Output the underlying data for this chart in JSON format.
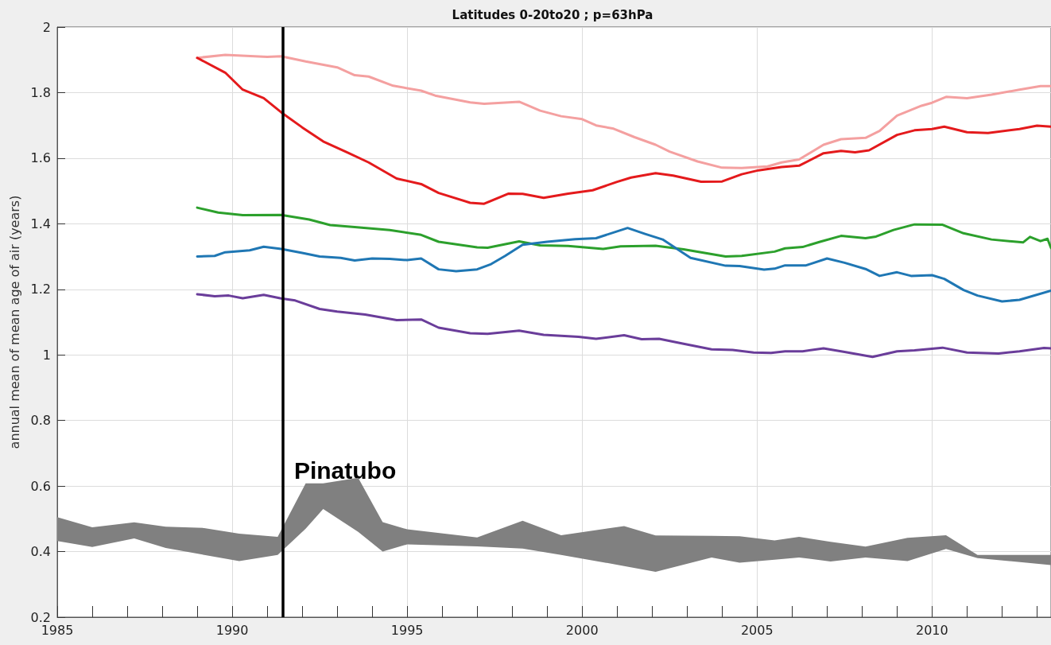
{
  "chart_data": {
    "type": "line",
    "title": "Latitudes 0-20to20 ; p=63hPa",
    "ylabel": "annual mean of mean age of air (years)",
    "xlim": [
      1985,
      2013.4
    ],
    "xticks": [
      1985,
      1990,
      1995,
      2000,
      2005,
      2010
    ],
    "ylim": [
      0.2,
      2
    ],
    "yticks": [
      0.2,
      0.4,
      0.6,
      0.8,
      1,
      1.2,
      1.4,
      1.6,
      1.8,
      2
    ],
    "grid": true,
    "marker": "none",
    "line_style": "solid",
    "ref_lines": [
      {
        "axis": "x",
        "value": 1991.45,
        "label": "Pinatubo",
        "color": "#000000"
      }
    ],
    "series": [
      {
        "type": "area",
        "color": "#808080",
        "values": [
          null,
          null,
          null,
          null,
          null,
          null,
          null,
          null,
          null,
          null,
          null,
          null,
          null,
          null,
          null,
          null,
          null,
          null,
          null,
          null,
          null,
          null,
          null,
          null,
          null,
          null,
          null
        ],
        "x": [
          1985,
          1986,
          1987.2,
          1988.1,
          1989.2,
          1990.2,
          1991.3,
          1992.1,
          1992.6,
          1993.6,
          1994.3,
          1995,
          1997,
          1998.3,
          1999.4,
          2001.2,
          2002.1,
          2003.7,
          2004.5,
          2005.5,
          2006.2,
          2007.1,
          2008.1,
          2009.3,
          2010.4,
          2011.3,
          2013.4
        ],
        "upper": [
          0.505,
          0.474,
          0.489,
          0.476,
          0.472,
          0.455,
          0.445,
          0.608,
          0.608,
          0.625,
          0.49,
          0.468,
          0.443,
          0.494,
          0.45,
          0.478,
          0.449,
          0.448,
          0.447,
          0.434,
          0.445,
          0.43,
          0.415,
          0.442,
          0.45,
          0.39,
          0.39
        ],
        "lower": [
          0.432,
          0.414,
          0.44,
          0.411,
          0.39,
          0.371,
          0.39,
          0.47,
          0.53,
          0.46,
          0.4,
          0.422,
          0.416,
          0.409,
          0.39,
          0.356,
          0.338,
          0.382,
          0.366,
          0.375,
          0.382,
          0.37,
          0.382,
          0.371,
          0.408,
          0.38,
          0.359
        ]
      },
      {
        "color": "#f4a0a0",
        "x": [
          1989,
          1989.8,
          1991,
          1991.4,
          1992.1,
          1993,
          1993.5,
          1993.9,
          1994.6,
          1995.4,
          1995.8,
          1996.8,
          1997.2,
          1998.2,
          1998.8,
          1999.4,
          2000,
          2000.4,
          2000.9,
          2001.5,
          2002.1,
          2002.5,
          2003.3,
          2004,
          2004.56,
          2005.3,
          2005.7,
          2006.2,
          2006.9,
          2007.4,
          2008.1,
          2008.5,
          2009,
          2009.7,
          2010,
          2010.4,
          2011,
          2011.7,
          2012.5,
          2013.1,
          2013.4
        ],
        "values": [
          1.906,
          1.915,
          1.909,
          1.911,
          1.895,
          1.877,
          1.853,
          1.849,
          1.821,
          1.806,
          1.791,
          1.77,
          1.766,
          1.772,
          1.745,
          1.728,
          1.719,
          1.7,
          1.69,
          1.664,
          1.641,
          1.62,
          1.59,
          1.571,
          1.57,
          1.575,
          1.587,
          1.596,
          1.641,
          1.658,
          1.662,
          1.683,
          1.73,
          1.76,
          1.769,
          1.787,
          1.783,
          1.794,
          1.809,
          1.82,
          1.82
        ]
      },
      {
        "color": "#e41a1c",
        "x": [
          1989,
          1989.8,
          1990.3,
          1990.9,
          1991.4,
          1992,
          1992.6,
          1993.3,
          1993.9,
          1994.7,
          1995.4,
          1995.9,
          1996.8,
          1997.2,
          1997.9,
          1998.3,
          1998.9,
          1999.6,
          2000.3,
          2001,
          2001.4,
          2002.1,
          2002.6,
          2003.4,
          2004,
          2004.56,
          2005.04,
          2005.7,
          2006.2,
          2006.9,
          2007.4,
          2007.8,
          2008.2,
          2009,
          2009.5,
          2010,
          2010.35,
          2011,
          2011.6,
          2012.5,
          2013,
          2013.4
        ],
        "values": [
          1.906,
          1.861,
          1.809,
          1.783,
          1.74,
          1.694,
          1.651,
          1.617,
          1.587,
          1.538,
          1.521,
          1.494,
          1.464,
          1.461,
          1.492,
          1.491,
          1.479,
          1.492,
          1.502,
          1.528,
          1.541,
          1.554,
          1.547,
          1.528,
          1.529,
          1.551,
          1.563,
          1.573,
          1.577,
          1.615,
          1.622,
          1.618,
          1.624,
          1.671,
          1.685,
          1.689,
          1.696,
          1.679,
          1.677,
          1.689,
          1.699,
          1.696
        ]
      },
      {
        "color": "#2ca02c",
        "x": [
          1989,
          1989.6,
          1990.3,
          1991.4,
          1992.2,
          1992.8,
          1993.5,
          1994.5,
          1995.4,
          1995.9,
          1997,
          1997.3,
          1998.2,
          1998.8,
          1999.6,
          2000.6,
          2001.1,
          2002.1,
          2002.9,
          2004.1,
          2004.56,
          2005.5,
          2005.8,
          2006.3,
          2006.8,
          2007.4,
          2008.1,
          2008.4,
          2008.9,
          2009.5,
          2010.3,
          2010.9,
          2011.7,
          2012.6,
          2012.8,
          2013.1,
          2013.3,
          2013.4
        ],
        "values": [
          1.449,
          1.434,
          1.426,
          1.427,
          1.413,
          1.396,
          1.39,
          1.381,
          1.366,
          1.345,
          1.328,
          1.327,
          1.346,
          1.334,
          1.332,
          1.323,
          1.331,
          1.333,
          1.322,
          1.3,
          1.302,
          1.315,
          1.325,
          1.329,
          1.345,
          1.363,
          1.356,
          1.361,
          1.381,
          1.398,
          1.397,
          1.371,
          1.352,
          1.343,
          1.36,
          1.347,
          1.354,
          1.326
        ]
      },
      {
        "color": "#1f77b4",
        "x": [
          1989,
          1989.5,
          1989.8,
          1990.5,
          1990.9,
          1991.4,
          1992,
          1992.5,
          1993.1,
          1993.5,
          1994,
          1994.5,
          1995,
          1995.4,
          1995.9,
          1996.4,
          1997,
          1997.4,
          1997.8,
          1998.3,
          1999,
          1999.8,
          2000.4,
          2001.3,
          2001.8,
          2002.3,
          2003.1,
          2004.1,
          2004.5,
          2005.2,
          2005.5,
          2005.8,
          2006.4,
          2007,
          2007.5,
          2008.1,
          2008.5,
          2009,
          2009.4,
          2010,
          2010.35,
          2010.9,
          2011.3,
          2012,
          2012.5,
          2013.4
        ],
        "values": [
          1.3,
          1.302,
          1.313,
          1.319,
          1.33,
          1.323,
          1.311,
          1.3,
          1.296,
          1.288,
          1.294,
          1.293,
          1.289,
          1.294,
          1.261,
          1.255,
          1.261,
          1.277,
          1.302,
          1.336,
          1.345,
          1.353,
          1.356,
          1.387,
          1.369,
          1.352,
          1.296,
          1.272,
          1.271,
          1.26,
          1.263,
          1.273,
          1.273,
          1.294,
          1.281,
          1.262,
          1.241,
          1.252,
          1.241,
          1.243,
          1.232,
          1.198,
          1.181,
          1.163,
          1.168,
          1.196
        ]
      },
      {
        "color": "#6a3d9a",
        "x": [
          1989,
          1989.5,
          1989.9,
          1990.3,
          1990.9,
          1991.4,
          1991.8,
          1992.5,
          1993,
          1993.8,
          1994.7,
          1995.4,
          1995.9,
          1996.8,
          1997.3,
          1998.2,
          1998.9,
          1999.9,
          2000.4,
          2001.2,
          2001.7,
          2002.2,
          2002.9,
          2003.7,
          2004.3,
          2004.9,
          2005.4,
          2005.8,
          2006.3,
          2006.9,
          2007.5,
          2008.3,
          2009,
          2009.5,
          2010.3,
          2011,
          2011.9,
          2012.5,
          2013.2,
          2013.4
        ],
        "values": [
          1.185,
          1.179,
          1.181,
          1.173,
          1.183,
          1.172,
          1.166,
          1.14,
          1.132,
          1.123,
          1.106,
          1.108,
          1.083,
          1.066,
          1.064,
          1.074,
          1.061,
          1.055,
          1.049,
          1.06,
          1.048,
          1.049,
          1.034,
          1.017,
          1.015,
          1.007,
          1.006,
          1.011,
          1.011,
          1.02,
          1.009,
          0.994,
          1.011,
          1.014,
          1.022,
          1.007,
          1.004,
          1.011,
          1.021,
          1.02
        ]
      }
    ]
  }
}
